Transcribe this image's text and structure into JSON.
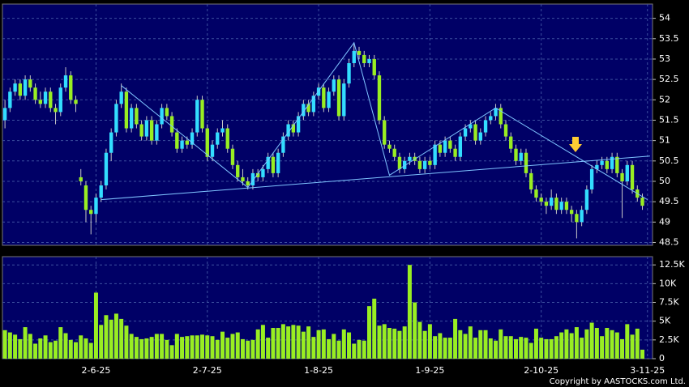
{
  "chart_data": [
    {
      "type": "candlestick",
      "up_color": "#33ddff",
      "down_color": "#99ee22",
      "line_color": "#7fc4ff",
      "grid": true,
      "xlim": [
        -0.5,
        128
      ],
      "ylim": [
        48.43,
        54.35
      ],
      "yticks": [
        48.5,
        49,
        49.5,
        50,
        50.5,
        51,
        51.5,
        52,
        52.5,
        53,
        53.5,
        54
      ],
      "ohlc": [
        [
          51.5,
          52.0,
          51.3,
          51.8
        ],
        [
          51.8,
          52.3,
          51.7,
          52.2
        ],
        [
          52.2,
          52.5,
          52.1,
          52.4
        ],
        [
          52.4,
          52.5,
          52.0,
          52.1
        ],
        [
          52.1,
          52.6,
          52.0,
          52.5
        ],
        [
          52.5,
          52.6,
          52.2,
          52.3
        ],
        [
          52.3,
          52.4,
          51.9,
          52.0
        ],
        [
          52.0,
          52.2,
          51.8,
          51.9
        ],
        [
          51.9,
          52.3,
          51.8,
          52.2
        ],
        [
          52.2,
          52.3,
          51.7,
          51.8
        ],
        [
          51.8,
          51.9,
          51.4,
          51.7
        ],
        [
          51.7,
          52.4,
          51.6,
          52.3
        ],
        [
          52.3,
          52.8,
          52.2,
          52.6
        ],
        [
          52.6,
          52.7,
          51.9,
          52.0
        ],
        [
          52.0,
          52.1,
          51.7,
          51.9
        ],
        [
          50.1,
          50.3,
          49.9,
          50.0
        ],
        [
          49.9,
          50.0,
          49.0,
          49.3
        ],
        [
          49.3,
          49.4,
          48.7,
          49.2
        ],
        [
          49.2,
          49.7,
          49.0,
          49.6
        ],
        [
          49.6,
          50.0,
          49.5,
          49.9
        ],
        [
          49.9,
          50.8,
          49.8,
          50.7
        ],
        [
          50.7,
          51.3,
          50.5,
          51.2
        ],
        [
          51.2,
          52.0,
          51.1,
          51.9
        ],
        [
          51.9,
          52.4,
          51.8,
          52.2
        ],
        [
          52.2,
          52.3,
          51.2,
          51.3
        ],
        [
          51.3,
          51.9,
          51.2,
          51.8
        ],
        [
          51.8,
          51.9,
          51.3,
          51.4
        ],
        [
          51.4,
          51.5,
          51.0,
          51.1
        ],
        [
          51.1,
          51.6,
          51.0,
          51.5
        ],
        [
          51.5,
          51.6,
          50.9,
          51.0
        ],
        [
          51.0,
          51.5,
          50.9,
          51.4
        ],
        [
          51.4,
          51.9,
          51.3,
          51.8
        ],
        [
          51.8,
          51.9,
          51.5,
          51.6
        ],
        [
          51.6,
          51.7,
          51.1,
          51.2
        ],
        [
          51.2,
          51.3,
          50.7,
          50.8
        ],
        [
          50.8,
          51.1,
          50.7,
          51.0
        ],
        [
          51.0,
          51.1,
          50.8,
          50.9
        ],
        [
          50.9,
          51.3,
          50.8,
          51.2
        ],
        [
          51.2,
          52.1,
          51.1,
          52.0
        ],
        [
          52.0,
          52.1,
          51.2,
          51.3
        ],
        [
          51.3,
          51.4,
          50.5,
          50.6
        ],
        [
          50.6,
          51.0,
          50.5,
          50.9
        ],
        [
          50.9,
          51.3,
          50.8,
          51.2
        ],
        [
          51.2,
          51.5,
          51.1,
          51.3
        ],
        [
          51.3,
          51.4,
          50.7,
          50.8
        ],
        [
          50.8,
          50.9,
          50.3,
          50.4
        ],
        [
          50.4,
          50.5,
          50.0,
          50.1
        ],
        [
          50.1,
          50.3,
          49.9,
          50.0
        ],
        [
          50.0,
          50.1,
          49.8,
          49.9
        ],
        [
          49.9,
          50.3,
          49.8,
          50.2
        ],
        [
          50.2,
          50.3,
          50.0,
          50.1
        ],
        [
          50.1,
          50.4,
          50.0,
          50.3
        ],
        [
          50.3,
          50.7,
          50.2,
          50.6
        ],
        [
          50.6,
          50.7,
          50.1,
          50.2
        ],
        [
          50.2,
          50.8,
          50.1,
          50.7
        ],
        [
          50.7,
          51.2,
          50.6,
          51.1
        ],
        [
          51.1,
          51.5,
          51.0,
          51.4
        ],
        [
          51.4,
          51.5,
          51.1,
          51.2
        ],
        [
          51.2,
          51.7,
          51.1,
          51.6
        ],
        [
          51.6,
          52.0,
          51.5,
          51.9
        ],
        [
          51.9,
          52.0,
          51.6,
          51.7
        ],
        [
          51.7,
          52.2,
          51.6,
          52.1
        ],
        [
          52.1,
          52.4,
          52.0,
          52.3
        ],
        [
          52.3,
          52.4,
          51.7,
          51.8
        ],
        [
          51.8,
          52.3,
          51.7,
          52.2
        ],
        [
          52.2,
          52.6,
          52.1,
          52.5
        ],
        [
          52.5,
          52.6,
          51.5,
          51.6
        ],
        [
          51.6,
          52.5,
          51.5,
          52.4
        ],
        [
          52.4,
          53.0,
          52.3,
          52.9
        ],
        [
          52.9,
          53.4,
          52.8,
          53.2
        ],
        [
          53.2,
          53.3,
          53.0,
          53.1
        ],
        [
          53.1,
          53.2,
          52.8,
          52.9
        ],
        [
          52.9,
          53.1,
          52.8,
          53.0
        ],
        [
          53.0,
          53.1,
          52.5,
          52.6
        ],
        [
          52.6,
          52.7,
          51.4,
          51.5
        ],
        [
          51.5,
          51.6,
          50.8,
          50.9
        ],
        [
          50.9,
          51.0,
          50.7,
          50.8
        ],
        [
          50.8,
          50.9,
          50.5,
          50.6
        ],
        [
          50.6,
          50.7,
          50.2,
          50.3
        ],
        [
          50.3,
          50.6,
          50.2,
          50.5
        ],
        [
          50.5,
          50.7,
          50.4,
          50.6
        ],
        [
          50.6,
          50.7,
          50.4,
          50.5
        ],
        [
          50.5,
          50.6,
          50.2,
          50.3
        ],
        [
          50.3,
          50.6,
          50.2,
          50.5
        ],
        [
          50.5,
          50.6,
          50.3,
          50.4
        ],
        [
          50.4,
          51.0,
          50.3,
          50.9
        ],
        [
          50.9,
          51.0,
          50.6,
          50.7
        ],
        [
          50.7,
          51.1,
          50.6,
          51.0
        ],
        [
          51.0,
          51.1,
          50.7,
          50.8
        ],
        [
          50.8,
          50.9,
          50.5,
          50.6
        ],
        [
          50.6,
          51.2,
          50.5,
          51.1
        ],
        [
          51.1,
          51.4,
          51.0,
          51.3
        ],
        [
          51.3,
          51.5,
          51.2,
          51.4
        ],
        [
          51.4,
          51.5,
          50.9,
          51.0
        ],
        [
          51.0,
          51.3,
          50.9,
          51.2
        ],
        [
          51.2,
          51.6,
          51.1,
          51.5
        ],
        [
          51.5,
          51.7,
          51.4,
          51.6
        ],
        [
          51.6,
          51.9,
          51.5,
          51.8
        ],
        [
          51.8,
          51.9,
          51.3,
          51.4
        ],
        [
          51.4,
          51.5,
          51.0,
          51.1
        ],
        [
          51.1,
          51.2,
          50.7,
          50.8
        ],
        [
          50.8,
          50.9,
          50.4,
          50.5
        ],
        [
          50.5,
          50.8,
          50.4,
          50.7
        ],
        [
          50.7,
          50.8,
          50.1,
          50.2
        ],
        [
          50.2,
          50.3,
          49.7,
          49.8
        ],
        [
          49.8,
          49.9,
          49.5,
          49.6
        ],
        [
          49.6,
          49.7,
          49.4,
          49.5
        ],
        [
          49.5,
          49.6,
          49.2,
          49.4
        ],
        [
          49.4,
          49.8,
          49.3,
          49.6
        ],
        [
          49.6,
          49.7,
          49.2,
          49.3
        ],
        [
          49.3,
          49.6,
          49.2,
          49.5
        ],
        [
          49.5,
          49.6,
          49.2,
          49.3
        ],
        [
          49.3,
          49.4,
          49.0,
          49.2
        ],
        [
          49.2,
          49.3,
          48.6,
          49.0
        ],
        [
          49.0,
          49.4,
          48.9,
          49.3
        ],
        [
          49.3,
          49.9,
          49.2,
          49.8
        ],
        [
          49.8,
          50.4,
          49.7,
          50.3
        ],
        [
          50.3,
          50.5,
          50.2,
          50.4
        ],
        [
          50.4,
          50.6,
          50.3,
          50.5
        ],
        [
          50.5,
          50.6,
          50.2,
          50.3
        ],
        [
          50.3,
          50.7,
          50.2,
          50.6
        ],
        [
          50.6,
          50.7,
          50.1,
          50.2
        ],
        [
          50.2,
          50.3,
          49.1,
          50.0
        ],
        [
          50.0,
          50.5,
          49.9,
          50.4
        ],
        [
          50.4,
          50.5,
          49.7,
          49.8
        ],
        [
          49.8,
          49.9,
          49.5,
          49.6
        ],
        [
          49.6,
          49.7,
          49.3,
          49.4
        ]
      ],
      "trendlines": [
        {
          "x": [
            19,
            127.5
          ],
          "y": [
            49.55,
            50.62
          ]
        },
        {
          "x": [
            23,
            48,
            69,
            76,
            97,
            127
          ],
          "y": [
            52.35,
            49.85,
            53.4,
            50.15,
            51.8,
            49.55
          ]
        }
      ]
    },
    {
      "type": "bar",
      "color": "#99ee22",
      "grid": true,
      "xlim": [
        -0.5,
        128
      ],
      "ylim": [
        0,
        13600
      ],
      "yticks": [
        0,
        {
          "value": 2500,
          "label": "2.5K"
        },
        {
          "value": 5000,
          "label": "5K"
        },
        {
          "value": 7500,
          "label": "7.5K"
        },
        {
          "value": 10000,
          "label": "10K"
        },
        {
          "value": 12500,
          "label": "12.5K"
        }
      ],
      "xticks": [
        {
          "value": 18,
          "label": "2-6-25"
        },
        {
          "value": 40,
          "label": "2-7-25"
        },
        {
          "value": 62,
          "label": "1-8-25"
        },
        {
          "value": 84,
          "label": "1-9-25"
        },
        {
          "value": 106,
          "label": "2-10-25"
        },
        {
          "value": 127,
          "label": "3-11-25"
        }
      ],
      "values": [
        3800,
        3500,
        3200,
        2600,
        4200,
        3300,
        2000,
        2700,
        3100,
        2200,
        2400,
        4200,
        3400,
        2500,
        2200,
        3100,
        2700,
        2100,
        8800,
        4500,
        5800,
        5200,
        6000,
        5300,
        4400,
        3300,
        2900,
        2600,
        2700,
        2900,
        3300,
        3300,
        2500,
        1800,
        3300,
        2900,
        3000,
        3100,
        3100,
        3200,
        3100,
        3000,
        2500,
        3600,
        2800,
        3300,
        3500,
        2600,
        2400,
        2500,
        3900,
        4500,
        2800,
        4100,
        4100,
        4600,
        4300,
        4500,
        4400,
        3600,
        4300,
        2900,
        3800,
        3900,
        2600,
        3300,
        2400,
        3900,
        3500,
        2000,
        2500,
        2400,
        7000,
        8000,
        4400,
        4600,
        4100,
        4000,
        3700,
        4300,
        12500,
        7500,
        4900,
        3700,
        4600,
        3000,
        3400,
        2800,
        2800,
        5300,
        3800,
        3300,
        4300,
        2800,
        3800,
        3800,
        2700,
        2400,
        3900,
        3000,
        3000,
        2600,
        2900,
        2800,
        2100,
        4000,
        2800,
        2600,
        2600,
        3000,
        3500,
        3900,
        3400,
        4200,
        2800,
        3900,
        4800,
        4100,
        3000,
        4100,
        3800,
        3500,
        2600,
        4600,
        3200,
        4000,
        1200
      ]
    }
  ],
  "copyright": "Copyright by AASTOCKS.com Ltd."
}
